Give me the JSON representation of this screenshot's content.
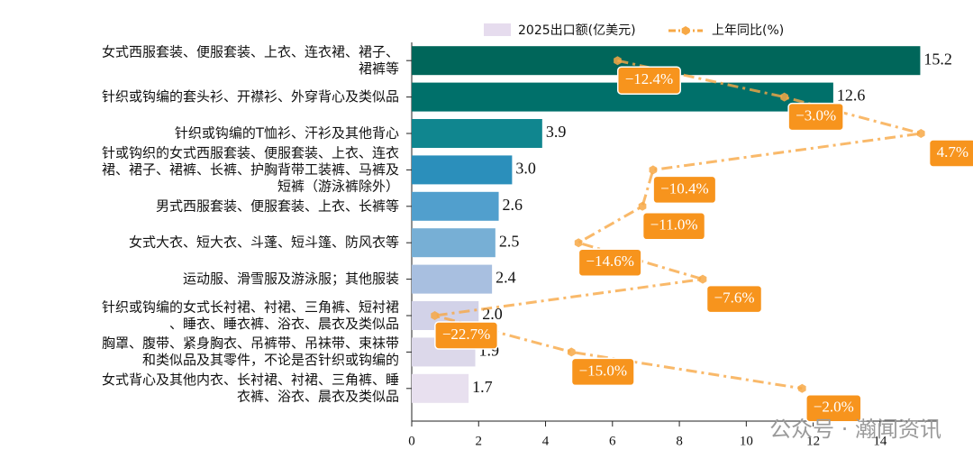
{
  "chart_data": {
    "type": "bar-line",
    "categories": [
      [
        "女式西服套装、便服套装、上衣、连衣裙、裙子、",
        "裙裤等"
      ],
      [
        "针织或钩编的套头衫、开襟衫、外穿背心及类似品"
      ],
      [
        "针织或钩编的T恤衫、汗衫及其他背心"
      ],
      [
        "针或钩织的女式西服套装、便服套装、上衣、连衣",
        "裙、裙子、裙裤、长裤、护胸背带工装裤、马裤及",
        "短裤（游泳裤除外）"
      ],
      [
        "男式西服套装、便服套装、上衣、长裤等"
      ],
      [
        "女式大衣、短大衣、斗蓬、短斗篷、防风衣等"
      ],
      [
        "运动服、滑雪服及游泳服；其他服装"
      ],
      [
        "针织或钩编的女式长衬裙、衬裙、三角裤、短衬裙",
        "、睡衣、睡衣裤、浴衣、晨衣及类似品"
      ],
      [
        "胸罩、腹带、紧身胸衣、吊裤带、吊袜带、束袜带",
        "和类似品及其零件，不论是否针织或钩编的"
      ],
      [
        "女式背心及其他内衣、长衬裙、衬裙、三角裤、睡",
        "衣裤、浴衣、晨衣及类似品"
      ]
    ],
    "series": [
      {
        "name": "2025出口额(亿美元)",
        "color": "#e6dcee",
        "colors": [
          "#00665a",
          "#00706a",
          "#10868f",
          "#2b8fbb",
          "#519fcd",
          "#77afd5",
          "#a8bfe0",
          "#d2d2e8",
          "#dcd8ea",
          "#e8e0ef"
        ],
        "values": [
          15.2,
          12.6,
          3.9,
          3.0,
          2.6,
          2.5,
          2.4,
          2.0,
          1.9,
          1.7
        ],
        "value_labels": [
          "15.2",
          "12.6",
          "3.9",
          "3.0",
          "2.6",
          "2.5",
          "2.4",
          "2.0",
          "1.9",
          "1.7"
        ]
      },
      {
        "name": "上年同比(%)",
        "color": "#f7a845",
        "axis": "x2",
        "values": [
          -12.4,
          -3.0,
          4.7,
          -10.4,
          -11.0,
          -14.6,
          -7.6,
          -22.7,
          -15.0,
          -2.0
        ],
        "value_labels": [
          "−12.4%",
          "−3.0%",
          "4.7%",
          "−10.4%",
          "−11.0%",
          "−14.6%",
          "−7.6%",
          "−22.7%",
          "−15.0%",
          "−2.0%"
        ]
      }
    ],
    "xlim": [
      0,
      15.7
    ],
    "xticks": [
      0,
      2,
      4,
      6,
      8,
      10,
      12,
      14
    ],
    "x2lim": [
      -24,
      5.6
    ],
    "label_color": "#f7941d",
    "watermark": "公众号 · 瀚闻资讯"
  }
}
